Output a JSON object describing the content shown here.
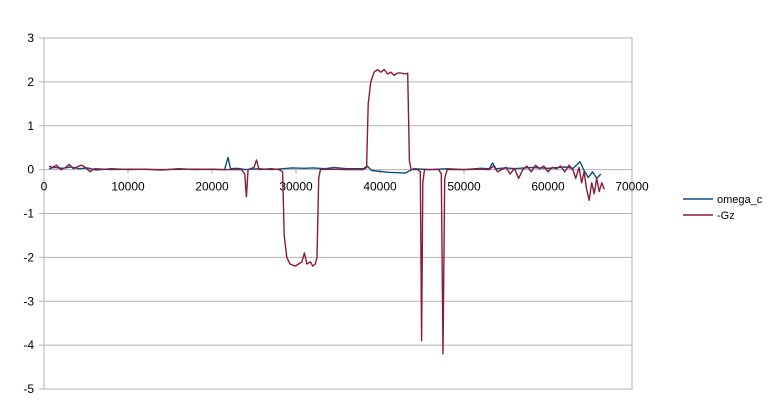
{
  "chart_data": {
    "type": "line",
    "title": "",
    "xlabel": "",
    "ylabel": "",
    "xlim": [
      0,
      70000
    ],
    "ylim": [
      -5,
      3
    ],
    "x_ticks": [
      0,
      10000,
      20000,
      30000,
      40000,
      50000,
      60000,
      70000
    ],
    "y_ticks": [
      3,
      2,
      1,
      0,
      -1,
      -2,
      -3,
      -4,
      -5
    ],
    "x_tick_labels": [
      "0",
      "10000",
      "20000",
      "30000",
      "40000",
      "50000",
      "60000",
      "70000"
    ],
    "y_tick_labels": [
      "3",
      "2",
      "1",
      "0",
      "-1",
      "-2",
      "-3",
      "-4",
      "-5"
    ],
    "grid": "horizontal",
    "legend_position": "right",
    "series": [
      {
        "name": "omega_c",
        "color": "#0b4f86",
        "points": [
          [
            600,
            0.02
          ],
          [
            1200,
            0.05
          ],
          [
            2200,
            0.03
          ],
          [
            3200,
            0.06
          ],
          [
            4200,
            0.02
          ],
          [
            5200,
            0.04
          ],
          [
            6200,
            -0.01
          ],
          [
            8000,
            0.02
          ],
          [
            10000,
            0.0
          ],
          [
            12000,
            0.01
          ],
          [
            14000,
            -0.01
          ],
          [
            16000,
            0.02
          ],
          [
            18000,
            0.0
          ],
          [
            20000,
            0.01
          ],
          [
            21500,
            0.0
          ],
          [
            21900,
            0.28
          ],
          [
            22200,
            0.02
          ],
          [
            23000,
            0.03
          ],
          [
            24000,
            0.0
          ],
          [
            25500,
            0.02
          ],
          [
            27000,
            0.0
          ],
          [
            28500,
            0.02
          ],
          [
            29500,
            0.04
          ],
          [
            31000,
            0.03
          ],
          [
            32000,
            0.04
          ],
          [
            33500,
            0.02
          ],
          [
            34500,
            0.05
          ],
          [
            36000,
            0.02
          ],
          [
            38000,
            0.02
          ],
          [
            38500,
            0.08
          ],
          [
            39000,
            -0.02
          ],
          [
            41000,
            -0.06
          ],
          [
            43000,
            -0.08
          ],
          [
            44000,
            0.02
          ],
          [
            46000,
            0.0
          ],
          [
            48000,
            0.02
          ],
          [
            50000,
            0.0
          ],
          [
            52000,
            0.03
          ],
          [
            53000,
            0.02
          ],
          [
            53400,
            0.15
          ],
          [
            53800,
            0.02
          ],
          [
            55000,
            0.04
          ],
          [
            56000,
            0.02
          ],
          [
            58000,
            0.05
          ],
          [
            60000,
            0.03
          ],
          [
            62000,
            0.06
          ],
          [
            63000,
            0.03
          ],
          [
            63800,
            0.18
          ],
          [
            64300,
            -0.02
          ],
          [
            64800,
            -0.18
          ],
          [
            65300,
            -0.05
          ],
          [
            65800,
            -0.2
          ],
          [
            66300,
            -0.1
          ]
        ]
      },
      {
        "name": "-Gz",
        "color": "#8b1a3a",
        "points": [
          [
            600,
            0.08
          ],
          [
            1000,
            0.05
          ],
          [
            1500,
            0.1
          ],
          [
            2000,
            0.0
          ],
          [
            2500,
            0.04
          ],
          [
            3000,
            0.12
          ],
          [
            3500,
            0.02
          ],
          [
            4000,
            0.07
          ],
          [
            4500,
            0.1
          ],
          [
            5000,
            0.04
          ],
          [
            5500,
            -0.05
          ],
          [
            6000,
            0.02
          ],
          [
            8000,
            0.0
          ],
          [
            10000,
            0.01
          ],
          [
            14000,
            0.0
          ],
          [
            18000,
            0.01
          ],
          [
            21000,
            0.0
          ],
          [
            23500,
            0.0
          ],
          [
            23900,
            -0.1
          ],
          [
            24100,
            -0.62
          ],
          [
            24300,
            0.0
          ],
          [
            25000,
            0.05
          ],
          [
            25300,
            0.22
          ],
          [
            25600,
            0.0
          ],
          [
            27000,
            0.02
          ],
          [
            28000,
            0.0
          ],
          [
            28400,
            -0.05
          ],
          [
            28600,
            -1.5
          ],
          [
            28900,
            -2.0
          ],
          [
            29300,
            -2.15
          ],
          [
            29900,
            -2.2
          ],
          [
            30300,
            -2.15
          ],
          [
            30700,
            -2.1
          ],
          [
            31000,
            -1.9
          ],
          [
            31300,
            -2.15
          ],
          [
            31700,
            -2.1
          ],
          [
            32000,
            -2.2
          ],
          [
            32300,
            -2.15
          ],
          [
            32500,
            -2.0
          ],
          [
            32700,
            -0.2
          ],
          [
            32900,
            0.0
          ],
          [
            34000,
            0.01
          ],
          [
            36000,
            0.0
          ],
          [
            38000,
            0.0
          ],
          [
            38400,
            0.05
          ],
          [
            38600,
            1.5
          ],
          [
            38900,
            2.0
          ],
          [
            39300,
            2.22
          ],
          [
            39700,
            2.28
          ],
          [
            40100,
            2.22
          ],
          [
            40500,
            2.28
          ],
          [
            40900,
            2.18
          ],
          [
            41300,
            2.22
          ],
          [
            41700,
            2.15
          ],
          [
            42100,
            2.2
          ],
          [
            42500,
            2.2
          ],
          [
            43000,
            2.18
          ],
          [
            43300,
            2.2
          ],
          [
            43500,
            0.2
          ],
          [
            43700,
            0.0
          ],
          [
            44500,
            0.0
          ],
          [
            44800,
            -0.05
          ],
          [
            44950,
            -3.9
          ],
          [
            45100,
            -0.3
          ],
          [
            45300,
            0.0
          ],
          [
            47000,
            0.0
          ],
          [
            47300,
            -0.1
          ],
          [
            47500,
            -4.2
          ],
          [
            47700,
            -0.2
          ],
          [
            48000,
            0.0
          ],
          [
            50000,
            0.0
          ],
          [
            52000,
            0.01
          ],
          [
            53000,
            0.0
          ],
          [
            53500,
            0.08
          ],
          [
            54000,
            -0.05
          ],
          [
            55000,
            0.05
          ],
          [
            55500,
            -0.1
          ],
          [
            56000,
            0.03
          ],
          [
            56500,
            -0.2
          ],
          [
            57000,
            0.0
          ],
          [
            57500,
            0.08
          ],
          [
            58000,
            -0.05
          ],
          [
            58500,
            0.1
          ],
          [
            59000,
            0.02
          ],
          [
            59500,
            0.08
          ],
          [
            60000,
            -0.05
          ],
          [
            60500,
            0.05
          ],
          [
            61000,
            0.02
          ],
          [
            61500,
            0.08
          ],
          [
            62000,
            -0.05
          ],
          [
            62500,
            0.1
          ],
          [
            63000,
            -0.02
          ],
          [
            63300,
            -0.2
          ],
          [
            63700,
            0.05
          ],
          [
            64000,
            -0.3
          ],
          [
            64300,
            -0.05
          ],
          [
            64600,
            -0.45
          ],
          [
            64900,
            -0.7
          ],
          [
            65200,
            -0.3
          ],
          [
            65500,
            -0.55
          ],
          [
            65800,
            -0.2
          ],
          [
            66100,
            -0.5
          ],
          [
            66400,
            -0.3
          ],
          [
            66700,
            -0.45
          ]
        ]
      }
    ]
  }
}
